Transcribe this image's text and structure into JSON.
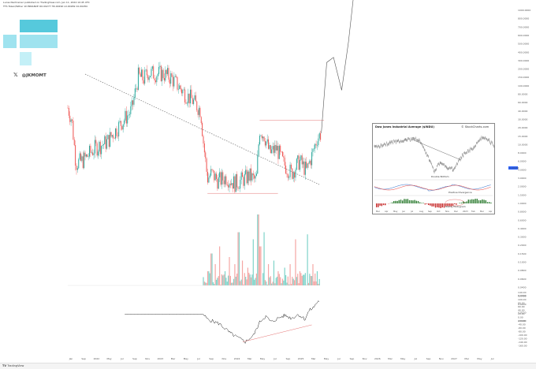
{
  "header": {
    "line1": "Lucas Nachreiner published on TradingView.com, Jan 11, 2024 10:45 UTC",
    "line2": "TTS Token/Tether 1D BINANCE O0.00277 H0.00290 L0.00269 C0.00284"
  },
  "handle": "@JKMOMT",
  "colors": {
    "up": "#26a69a",
    "down": "#ef5350",
    "vol_up": "#7fd3c9",
    "vol_down": "#f5a6a4",
    "projection": "#555555",
    "trendline": "#777777",
    "price_tag": "#2962ff"
  },
  "icons": [
    "x-logo-icon",
    "tradingview-logo-icon"
  ],
  "footer": {
    "brand": "TradingView"
  },
  "price_axis_tag": "0.00284",
  "chart_data": [
    {
      "type": "candlestick",
      "x_ticks": [
        "Jan",
        "Sep",
        "2022",
        "May",
        "Jul",
        "Sep",
        "Nov",
        "2023",
        "Mar",
        "May",
        "Jul",
        "Sep",
        "Nov",
        "2024",
        "Mar",
        "May",
        "Jul",
        "Sep",
        "2025",
        "Mar",
        "May",
        "Jul",
        "Sep",
        "Nov",
        "2026",
        "Mar",
        "May",
        "Jul",
        "Sep",
        "Nov",
        "2027",
        "Mar",
        "May",
        "Jul"
      ],
      "y_ticks": [
        "1000.0000",
        "800.0000",
        "700.0000",
        "600.0000",
        "500.0000",
        "400.0000",
        "300.0000",
        "200.0000",
        "150.0000",
        "100.0000",
        "80.0000",
        "60.0000",
        "40.0000",
        "30.0000",
        "20.0000",
        "15.0000",
        "10.0000",
        "8.0000",
        "6.0000",
        "4.0000",
        "3.0000",
        "2.0000",
        "1.5000",
        "1.0000",
        "0.8000",
        "0.6000",
        "0.4000",
        "0.3000",
        "0.2000",
        "0.1500",
        "0.1000",
        "0.0800",
        "0.0600",
        "0.0400",
        "0.0300",
        "0.0200",
        "0.0150",
        "0.0100"
      ],
      "price_path": [
        [
          0,
          0.72
        ],
        [
          6,
          0.62
        ],
        [
          12,
          0.28
        ],
        [
          22,
          0.3
        ],
        [
          40,
          0.4
        ],
        [
          58,
          0.45
        ],
        [
          76,
          0.58
        ],
        [
          88,
          0.66
        ],
        [
          94,
          0.7
        ],
        [
          100,
          0.86
        ],
        [
          104,
          0.97
        ],
        [
          112,
          0.95
        ],
        [
          118,
          1.0
        ],
        [
          128,
          0.99
        ],
        [
          140,
          0.99
        ],
        [
          152,
          0.96
        ],
        [
          165,
          0.88
        ],
        [
          175,
          0.82
        ],
        [
          182,
          0.79
        ],
        [
          196,
          0.7
        ],
        [
          200,
          0.45
        ],
        [
          206,
          0.16
        ],
        [
          212,
          0.2
        ],
        [
          222,
          0.14
        ],
        [
          234,
          0.17
        ],
        [
          246,
          0.12
        ],
        [
          258,
          0.15
        ],
        [
          268,
          0.18
        ],
        [
          278,
          0.14
        ],
        [
          283,
          0.55
        ],
        [
          290,
          0.5
        ],
        [
          298,
          0.36
        ],
        [
          308,
          0.4
        ],
        [
          318,
          0.28
        ],
        [
          330,
          0.2
        ],
        [
          342,
          0.3
        ],
        [
          352,
          0.22
        ],
        [
          360,
          0.34
        ],
        [
          368,
          0.48
        ],
        [
          374,
          0.52
        ]
      ],
      "projection_path": [
        [
          374,
          0.52
        ],
        [
          382,
          1.08
        ],
        [
          392,
          1.12
        ],
        [
          404,
          0.86
        ],
        [
          414,
          1.24
        ],
        [
          426,
          1.82
        ]
      ],
      "resistance_level": 0.62,
      "support_level": 0.08,
      "volume": [
        [
          207,
          0.2
        ],
        [
          212,
          0.45
        ],
        [
          218,
          0.3
        ],
        [
          224,
          0.55
        ],
        [
          232,
          0.2
        ],
        [
          238,
          0.4
        ],
        [
          246,
          0.3
        ],
        [
          252,
          0.75
        ],
        [
          258,
          0.35
        ],
        [
          266,
          0.25
        ],
        [
          274,
          0.65
        ],
        [
          281,
          1.0
        ],
        [
          284,
          0.55
        ],
        [
          290,
          0.75
        ],
        [
          296,
          0.3
        ],
        [
          304,
          0.35
        ],
        [
          310,
          0.2
        ],
        [
          320,
          0.25
        ],
        [
          328,
          0.3
        ],
        [
          336,
          0.65
        ],
        [
          342,
          0.2
        ],
        [
          348,
          0.15
        ],
        [
          354,
          0.72
        ],
        [
          362,
          0.3
        ],
        [
          368,
          0.2
        ]
      ],
      "indicator": [
        [
          84,
          0.22
        ],
        [
          200,
          0.22
        ],
        [
          206,
          0.12
        ],
        [
          224,
          0.02
        ],
        [
          240,
          -0.18
        ],
        [
          252,
          -0.28
        ],
        [
          262,
          -0.36
        ],
        [
          274,
          -0.22
        ],
        [
          284,
          0.08
        ],
        [
          292,
          0.18
        ],
        [
          300,
          0.06
        ],
        [
          310,
          0.14
        ],
        [
          320,
          0.2
        ],
        [
          330,
          0.14
        ],
        [
          340,
          0.22
        ],
        [
          350,
          0.12
        ],
        [
          356,
          0.3
        ],
        [
          362,
          0.36
        ],
        [
          368,
          0.48
        ],
        [
          372,
          0.52
        ]
      ]
    },
    {
      "type": "line",
      "title": "Dow Jones Industrial Average ($INDU)",
      "watermark": "© StockCharts.com",
      "annotations": [
        "Double Bottom",
        "Positive Divergence",
        "Rising Histogram"
      ],
      "x_ticks": [
        "Mar",
        "Apr",
        "May",
        "Jun",
        "Jul",
        "Aug",
        "Sep",
        "Oct",
        "Nov",
        "Dec",
        "2023",
        "Feb",
        "Mar",
        "Apr"
      ]
    }
  ]
}
